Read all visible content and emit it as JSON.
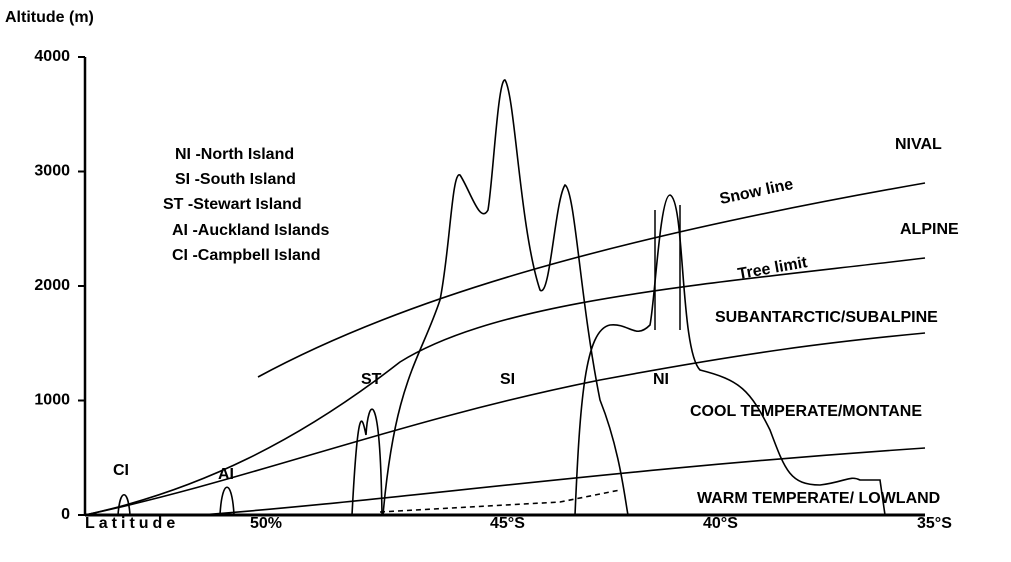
{
  "axis": {
    "title": "Altitude (m)",
    "ticks": [
      0,
      1000,
      2000,
      3000,
      4000
    ],
    "xlabel": "Latitude",
    "xticks": [
      "50%",
      "45°S",
      "40°S",
      "35°S"
    ]
  },
  "legend": [
    "NI -North Island",
    "SI -South Island",
    "ST -Stewart Island",
    "AI -Auckland Islands",
    "CI -Campbell Island"
  ],
  "zones": [
    "NIVAL",
    "ALPINE",
    "SUBANTARCTIC/SUBALPINE",
    "COOL TEMPERATE/MONTANE",
    "WARM TEMPERATE/ LOWLAND"
  ],
  "lines": [
    "Snow line",
    "Tree limit"
  ],
  "islands": [
    "CI",
    "AI",
    "ST",
    "SI",
    "NI"
  ]
}
